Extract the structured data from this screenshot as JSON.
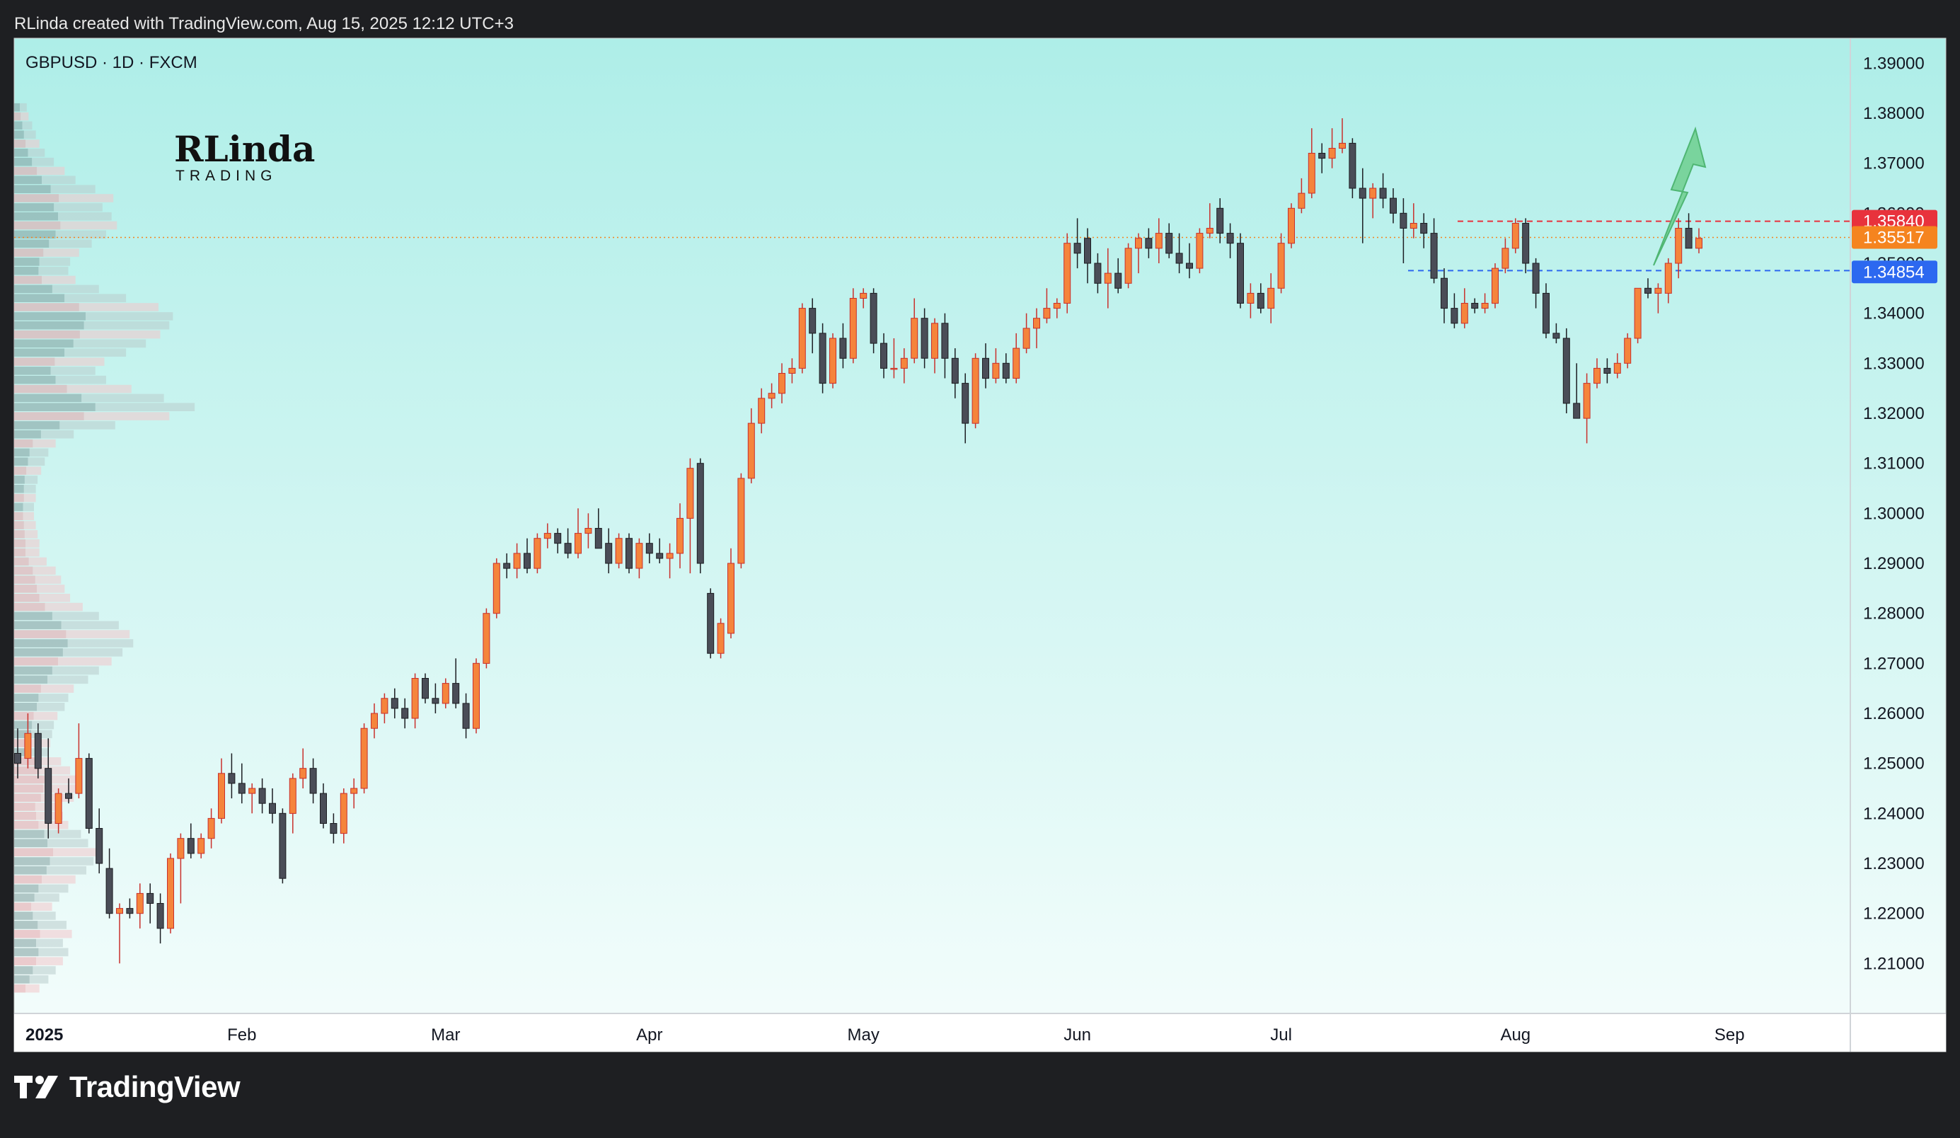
{
  "header": {
    "text": "RLinda created with TradingView.com, Aug 15, 2025 12:12 UTC+3"
  },
  "symbol": {
    "label": "GBPUSD · 1D · FXCM"
  },
  "watermark": {
    "logo_text": "RLinda",
    "logo_sub": "TRADING"
  },
  "footer": {
    "brand": "TradingView"
  },
  "colors": {
    "up": "#f5843c",
    "up_border": "#c9302c",
    "down": "#4a4d57",
    "down_border": "#1c1d22",
    "bg_top": "#aeeee8",
    "bg_bottom": "#f4fdfc",
    "resistance": "#e8323c",
    "current": "#f5841f",
    "support": "#2c68f0",
    "arrow": "#6fcf8f"
  },
  "chart_data": {
    "type": "candlestick",
    "symbol": "GBPUSD",
    "timeframe": "1D",
    "source": "FXCM",
    "ylim": [
      1.2,
      1.395
    ],
    "y_ticks": [
      "1.21000",
      "1.22000",
      "1.23000",
      "1.24000",
      "1.25000",
      "1.26000",
      "1.27000",
      "1.28000",
      "1.29000",
      "1.30000",
      "1.31000",
      "1.32000",
      "1.33000",
      "1.34000",
      "1.35000",
      "1.36000",
      "1.37000",
      "1.38000",
      "1.39000"
    ],
    "x_labels": [
      {
        "label": "2025",
        "index": 0,
        "bold": true
      },
      {
        "label": "Feb",
        "index": 22
      },
      {
        "label": "Mar",
        "index": 42
      },
      {
        "label": "Apr",
        "index": 62
      },
      {
        "label": "May",
        "index": 83
      },
      {
        "label": "Jun",
        "index": 104
      },
      {
        "label": "Jul",
        "index": 124
      },
      {
        "label": "Aug",
        "index": 147
      },
      {
        "label": "Sep",
        "index": 168
      }
    ],
    "levels": [
      {
        "name": "resistance",
        "value": 1.3584,
        "label": "1.35840"
      },
      {
        "name": "current",
        "value": 1.35517,
        "label": "1.35517"
      },
      {
        "name": "support",
        "value": 1.34854,
        "label": "1.34854"
      }
    ],
    "candles": [
      {
        "o": 1.252,
        "h": 1.257,
        "l": 1.247,
        "c": 1.25
      },
      {
        "o": 1.251,
        "h": 1.26,
        "l": 1.249,
        "c": 1.256
      },
      {
        "o": 1.256,
        "h": 1.258,
        "l": 1.247,
        "c": 1.249
      },
      {
        "o": 1.249,
        "h": 1.255,
        "l": 1.235,
        "c": 1.238
      },
      {
        "o": 1.238,
        "h": 1.245,
        "l": 1.236,
        "c": 1.244
      },
      {
        "o": 1.244,
        "h": 1.247,
        "l": 1.242,
        "c": 1.243
      },
      {
        "o": 1.244,
        "h": 1.258,
        "l": 1.243,
        "c": 1.251
      },
      {
        "o": 1.251,
        "h": 1.252,
        "l": 1.236,
        "c": 1.237
      },
      {
        "o": 1.237,
        "h": 1.241,
        "l": 1.228,
        "c": 1.23
      },
      {
        "o": 1.229,
        "h": 1.233,
        "l": 1.219,
        "c": 1.22
      },
      {
        "o": 1.22,
        "h": 1.222,
        "l": 1.21,
        "c": 1.221
      },
      {
        "o": 1.221,
        "h": 1.223,
        "l": 1.219,
        "c": 1.22
      },
      {
        "o": 1.22,
        "h": 1.226,
        "l": 1.217,
        "c": 1.224
      },
      {
        "o": 1.224,
        "h": 1.226,
        "l": 1.218,
        "c": 1.222
      },
      {
        "o": 1.222,
        "h": 1.224,
        "l": 1.214,
        "c": 1.217
      },
      {
        "o": 1.217,
        "h": 1.232,
        "l": 1.216,
        "c": 1.231
      },
      {
        "o": 1.231,
        "h": 1.236,
        "l": 1.222,
        "c": 1.235
      },
      {
        "o": 1.235,
        "h": 1.238,
        "l": 1.231,
        "c": 1.232
      },
      {
        "o": 1.232,
        "h": 1.236,
        "l": 1.231,
        "c": 1.235
      },
      {
        "o": 1.235,
        "h": 1.241,
        "l": 1.233,
        "c": 1.239
      },
      {
        "o": 1.239,
        "h": 1.251,
        "l": 1.238,
        "c": 1.248
      },
      {
        "o": 1.248,
        "h": 1.252,
        "l": 1.243,
        "c": 1.246
      },
      {
        "o": 1.246,
        "h": 1.25,
        "l": 1.242,
        "c": 1.244
      },
      {
        "o": 1.244,
        "h": 1.246,
        "l": 1.24,
        "c": 1.245
      },
      {
        "o": 1.245,
        "h": 1.247,
        "l": 1.24,
        "c": 1.242
      },
      {
        "o": 1.242,
        "h": 1.245,
        "l": 1.238,
        "c": 1.24
      },
      {
        "o": 1.24,
        "h": 1.241,
        "l": 1.226,
        "c": 1.227
      },
      {
        "o": 1.24,
        "h": 1.248,
        "l": 1.236,
        "c": 1.247
      },
      {
        "o": 1.247,
        "h": 1.253,
        "l": 1.245,
        "c": 1.249
      },
      {
        "o": 1.249,
        "h": 1.251,
        "l": 1.242,
        "c": 1.244
      },
      {
        "o": 1.244,
        "h": 1.246,
        "l": 1.237,
        "c": 1.238
      },
      {
        "o": 1.238,
        "h": 1.24,
        "l": 1.234,
        "c": 1.236
      },
      {
        "o": 1.236,
        "h": 1.245,
        "l": 1.234,
        "c": 1.244
      },
      {
        "o": 1.244,
        "h": 1.247,
        "l": 1.241,
        "c": 1.245
      },
      {
        "o": 1.245,
        "h": 1.258,
        "l": 1.244,
        "c": 1.257
      },
      {
        "o": 1.257,
        "h": 1.262,
        "l": 1.255,
        "c": 1.26
      },
      {
        "o": 1.26,
        "h": 1.264,
        "l": 1.258,
        "c": 1.263
      },
      {
        "o": 1.263,
        "h": 1.265,
        "l": 1.259,
        "c": 1.261
      },
      {
        "o": 1.261,
        "h": 1.263,
        "l": 1.257,
        "c": 1.259
      },
      {
        "o": 1.259,
        "h": 1.268,
        "l": 1.257,
        "c": 1.267
      },
      {
        "o": 1.267,
        "h": 1.268,
        "l": 1.262,
        "c": 1.263
      },
      {
        "o": 1.263,
        "h": 1.266,
        "l": 1.26,
        "c": 1.262
      },
      {
        "o": 1.262,
        "h": 1.267,
        "l": 1.261,
        "c": 1.266
      },
      {
        "o": 1.266,
        "h": 1.271,
        "l": 1.261,
        "c": 1.262
      },
      {
        "o": 1.262,
        "h": 1.264,
        "l": 1.255,
        "c": 1.257
      },
      {
        "o": 1.257,
        "h": 1.271,
        "l": 1.256,
        "c": 1.27
      },
      {
        "o": 1.27,
        "h": 1.281,
        "l": 1.269,
        "c": 1.28
      },
      {
        "o": 1.28,
        "h": 1.291,
        "l": 1.279,
        "c": 1.29
      },
      {
        "o": 1.29,
        "h": 1.292,
        "l": 1.287,
        "c": 1.289
      },
      {
        "o": 1.289,
        "h": 1.294,
        "l": 1.287,
        "c": 1.292
      },
      {
        "o": 1.292,
        "h": 1.295,
        "l": 1.288,
        "c": 1.289
      },
      {
        "o": 1.289,
        "h": 1.296,
        "l": 1.288,
        "c": 1.295
      },
      {
        "o": 1.295,
        "h": 1.298,
        "l": 1.293,
        "c": 1.296
      },
      {
        "o": 1.296,
        "h": 1.297,
        "l": 1.292,
        "c": 1.294
      },
      {
        "o": 1.294,
        "h": 1.297,
        "l": 1.291,
        "c": 1.292
      },
      {
        "o": 1.292,
        "h": 1.301,
        "l": 1.291,
        "c": 1.296
      },
      {
        "o": 1.296,
        "h": 1.3,
        "l": 1.293,
        "c": 1.297
      },
      {
        "o": 1.297,
        "h": 1.301,
        "l": 1.293,
        "c": 1.293
      },
      {
        "o": 1.294,
        "h": 1.297,
        "l": 1.288,
        "c": 1.29
      },
      {
        "o": 1.29,
        "h": 1.296,
        "l": 1.289,
        "c": 1.295
      },
      {
        "o": 1.295,
        "h": 1.296,
        "l": 1.288,
        "c": 1.289
      },
      {
        "o": 1.289,
        "h": 1.295,
        "l": 1.287,
        "c": 1.294
      },
      {
        "o": 1.294,
        "h": 1.296,
        "l": 1.29,
        "c": 1.292
      },
      {
        "o": 1.292,
        "h": 1.295,
        "l": 1.29,
        "c": 1.291
      },
      {
        "o": 1.291,
        "h": 1.294,
        "l": 1.287,
        "c": 1.292
      },
      {
        "o": 1.292,
        "h": 1.302,
        "l": 1.289,
        "c": 1.299
      },
      {
        "o": 1.299,
        "h": 1.311,
        "l": 1.288,
        "c": 1.309
      },
      {
        "o": 1.31,
        "h": 1.311,
        "l": 1.288,
        "c": 1.29
      },
      {
        "o": 1.284,
        "h": 1.285,
        "l": 1.271,
        "c": 1.272
      },
      {
        "o": 1.272,
        "h": 1.279,
        "l": 1.271,
        "c": 1.278
      },
      {
        "o": 1.276,
        "h": 1.293,
        "l": 1.275,
        "c": 1.29
      },
      {
        "o": 1.29,
        "h": 1.308,
        "l": 1.289,
        "c": 1.307
      },
      {
        "o": 1.307,
        "h": 1.321,
        "l": 1.306,
        "c": 1.318
      },
      {
        "o": 1.318,
        "h": 1.325,
        "l": 1.316,
        "c": 1.323
      },
      {
        "o": 1.323,
        "h": 1.326,
        "l": 1.321,
        "c": 1.324
      },
      {
        "o": 1.324,
        "h": 1.33,
        "l": 1.322,
        "c": 1.328
      },
      {
        "o": 1.328,
        "h": 1.331,
        "l": 1.326,
        "c": 1.329
      },
      {
        "o": 1.329,
        "h": 1.342,
        "l": 1.328,
        "c": 1.341
      },
      {
        "o": 1.341,
        "h": 1.343,
        "l": 1.332,
        "c": 1.336
      },
      {
        "o": 1.336,
        "h": 1.338,
        "l": 1.324,
        "c": 1.326
      },
      {
        "o": 1.326,
        "h": 1.336,
        "l": 1.325,
        "c": 1.335
      },
      {
        "o": 1.335,
        "h": 1.338,
        "l": 1.329,
        "c": 1.331
      },
      {
        "o": 1.331,
        "h": 1.345,
        "l": 1.33,
        "c": 1.343
      },
      {
        "o": 1.343,
        "h": 1.345,
        "l": 1.341,
        "c": 1.344
      },
      {
        "o": 1.344,
        "h": 1.345,
        "l": 1.332,
        "c": 1.334
      },
      {
        "o": 1.334,
        "h": 1.336,
        "l": 1.327,
        "c": 1.329
      },
      {
        "o": 1.329,
        "h": 1.335,
        "l": 1.327,
        "c": 1.329
      },
      {
        "o": 1.329,
        "h": 1.333,
        "l": 1.326,
        "c": 1.331
      },
      {
        "o": 1.331,
        "h": 1.343,
        "l": 1.33,
        "c": 1.339
      },
      {
        "o": 1.339,
        "h": 1.341,
        "l": 1.329,
        "c": 1.331
      },
      {
        "o": 1.331,
        "h": 1.339,
        "l": 1.328,
        "c": 1.338
      },
      {
        "o": 1.338,
        "h": 1.34,
        "l": 1.327,
        "c": 1.331
      },
      {
        "o": 1.331,
        "h": 1.333,
        "l": 1.323,
        "c": 1.326
      },
      {
        "o": 1.326,
        "h": 1.328,
        "l": 1.314,
        "c": 1.318
      },
      {
        "o": 1.318,
        "h": 1.332,
        "l": 1.317,
        "c": 1.331
      },
      {
        "o": 1.331,
        "h": 1.334,
        "l": 1.325,
        "c": 1.327
      },
      {
        "o": 1.327,
        "h": 1.333,
        "l": 1.326,
        "c": 1.33
      },
      {
        "o": 1.33,
        "h": 1.332,
        "l": 1.326,
        "c": 1.327
      },
      {
        "o": 1.327,
        "h": 1.336,
        "l": 1.326,
        "c": 1.333
      },
      {
        "o": 1.333,
        "h": 1.34,
        "l": 1.332,
        "c": 1.337
      },
      {
        "o": 1.337,
        "h": 1.341,
        "l": 1.333,
        "c": 1.339
      },
      {
        "o": 1.339,
        "h": 1.345,
        "l": 1.338,
        "c": 1.341
      },
      {
        "o": 1.341,
        "h": 1.343,
        "l": 1.339,
        "c": 1.342
      },
      {
        "o": 1.342,
        "h": 1.356,
        "l": 1.34,
        "c": 1.354
      },
      {
        "o": 1.354,
        "h": 1.359,
        "l": 1.349,
        "c": 1.352
      },
      {
        "o": 1.355,
        "h": 1.357,
        "l": 1.346,
        "c": 1.35
      },
      {
        "o": 1.35,
        "h": 1.352,
        "l": 1.344,
        "c": 1.346
      },
      {
        "o": 1.346,
        "h": 1.353,
        "l": 1.341,
        "c": 1.348
      },
      {
        "o": 1.348,
        "h": 1.351,
        "l": 1.344,
        "c": 1.345
      },
      {
        "o": 1.346,
        "h": 1.354,
        "l": 1.345,
        "c": 1.353
      },
      {
        "o": 1.353,
        "h": 1.356,
        "l": 1.348,
        "c": 1.355
      },
      {
        "o": 1.355,
        "h": 1.357,
        "l": 1.351,
        "c": 1.353
      },
      {
        "o": 1.353,
        "h": 1.359,
        "l": 1.35,
        "c": 1.356
      },
      {
        "o": 1.356,
        "h": 1.358,
        "l": 1.351,
        "c": 1.352
      },
      {
        "o": 1.352,
        "h": 1.356,
        "l": 1.348,
        "c": 1.35
      },
      {
        "o": 1.35,
        "h": 1.354,
        "l": 1.347,
        "c": 1.349
      },
      {
        "o": 1.349,
        "h": 1.357,
        "l": 1.348,
        "c": 1.356
      },
      {
        "o": 1.356,
        "h": 1.362,
        "l": 1.355,
        "c": 1.357
      },
      {
        "o": 1.361,
        "h": 1.363,
        "l": 1.354,
        "c": 1.356
      },
      {
        "o": 1.356,
        "h": 1.358,
        "l": 1.351,
        "c": 1.354
      },
      {
        "o": 1.354,
        "h": 1.356,
        "l": 1.341,
        "c": 1.342
      },
      {
        "o": 1.342,
        "h": 1.346,
        "l": 1.339,
        "c": 1.344
      },
      {
        "o": 1.344,
        "h": 1.346,
        "l": 1.34,
        "c": 1.341
      },
      {
        "o": 1.341,
        "h": 1.348,
        "l": 1.338,
        "c": 1.345
      },
      {
        "o": 1.345,
        "h": 1.356,
        "l": 1.344,
        "c": 1.354
      },
      {
        "o": 1.354,
        "h": 1.362,
        "l": 1.353,
        "c": 1.361
      },
      {
        "o": 1.361,
        "h": 1.367,
        "l": 1.36,
        "c": 1.364
      },
      {
        "o": 1.364,
        "h": 1.377,
        "l": 1.363,
        "c": 1.372
      },
      {
        "o": 1.372,
        "h": 1.374,
        "l": 1.368,
        "c": 1.371
      },
      {
        "o": 1.371,
        "h": 1.377,
        "l": 1.369,
        "c": 1.373
      },
      {
        "o": 1.373,
        "h": 1.379,
        "l": 1.372,
        "c": 1.374
      },
      {
        "o": 1.374,
        "h": 1.375,
        "l": 1.363,
        "c": 1.365
      },
      {
        "o": 1.365,
        "h": 1.369,
        "l": 1.354,
        "c": 1.363
      },
      {
        "o": 1.363,
        "h": 1.366,
        "l": 1.359,
        "c": 1.365
      },
      {
        "o": 1.365,
        "h": 1.368,
        "l": 1.361,
        "c": 1.363
      },
      {
        "o": 1.363,
        "h": 1.365,
        "l": 1.358,
        "c": 1.36
      },
      {
        "o": 1.36,
        "h": 1.363,
        "l": 1.35,
        "c": 1.357
      },
      {
        "o": 1.357,
        "h": 1.362,
        "l": 1.355,
        "c": 1.358
      },
      {
        "o": 1.358,
        "h": 1.36,
        "l": 1.353,
        "c": 1.356
      },
      {
        "o": 1.356,
        "h": 1.359,
        "l": 1.346,
        "c": 1.347
      },
      {
        "o": 1.347,
        "h": 1.349,
        "l": 1.338,
        "c": 1.341
      },
      {
        "o": 1.341,
        "h": 1.344,
        "l": 1.337,
        "c": 1.338
      },
      {
        "o": 1.338,
        "h": 1.345,
        "l": 1.337,
        "c": 1.342
      },
      {
        "o": 1.342,
        "h": 1.343,
        "l": 1.34,
        "c": 1.341
      },
      {
        "o": 1.341,
        "h": 1.344,
        "l": 1.34,
        "c": 1.342
      },
      {
        "o": 1.342,
        "h": 1.35,
        "l": 1.341,
        "c": 1.349
      },
      {
        "o": 1.349,
        "h": 1.355,
        "l": 1.348,
        "c": 1.353
      },
      {
        "o": 1.353,
        "h": 1.359,
        "l": 1.352,
        "c": 1.358
      },
      {
        "o": 1.358,
        "h": 1.359,
        "l": 1.348,
        "c": 1.35
      },
      {
        "o": 1.35,
        "h": 1.351,
        "l": 1.341,
        "c": 1.344
      },
      {
        "o": 1.344,
        "h": 1.346,
        "l": 1.335,
        "c": 1.336
      },
      {
        "o": 1.336,
        "h": 1.338,
        "l": 1.334,
        "c": 1.335
      },
      {
        "o": 1.335,
        "h": 1.337,
        "l": 1.32,
        "c": 1.322
      },
      {
        "o": 1.322,
        "h": 1.33,
        "l": 1.319,
        "c": 1.319
      },
      {
        "o": 1.319,
        "h": 1.328,
        "l": 1.314,
        "c": 1.326
      },
      {
        "o": 1.326,
        "h": 1.331,
        "l": 1.325,
        "c": 1.329
      },
      {
        "o": 1.329,
        "h": 1.331,
        "l": 1.326,
        "c": 1.328
      },
      {
        "o": 1.328,
        "h": 1.332,
        "l": 1.327,
        "c": 1.33
      },
      {
        "o": 1.33,
        "h": 1.336,
        "l": 1.329,
        "c": 1.335
      },
      {
        "o": 1.335,
        "h": 1.345,
        "l": 1.334,
        "c": 1.345
      },
      {
        "o": 1.345,
        "h": 1.347,
        "l": 1.343,
        "c": 1.344
      },
      {
        "o": 1.344,
        "h": 1.346,
        "l": 1.34,
        "c": 1.345
      },
      {
        "o": 1.344,
        "h": 1.351,
        "l": 1.342,
        "c": 1.35
      },
      {
        "o": 1.35,
        "h": 1.359,
        "l": 1.347,
        "c": 1.357
      },
      {
        "o": 1.357,
        "h": 1.36,
        "l": 1.353,
        "c": 1.353
      },
      {
        "o": 1.353,
        "h": 1.357,
        "l": 1.352,
        "c": 1.355
      }
    ],
    "volume_profile": {
      "price_min": 1.204,
      "price_max": 1.382,
      "widths": [
        0.14,
        0.19,
        0.23,
        0.27,
        0.3,
        0.27,
        0.32,
        0.29,
        0.23,
        0.21,
        0.25,
        0.3,
        0.34,
        0.4,
        0.44,
        0.48,
        0.41,
        0.37,
        0.3,
        0.27,
        0.26,
        0.33,
        0.36,
        0.37,
        0.31,
        0.26,
        0.19,
        0.2,
        0.21,
        0.22,
        0.24,
        0.28,
        0.3,
        0.33,
        0.41,
        0.47,
        0.54,
        0.6,
        0.66,
        0.64,
        0.58,
        0.47,
        0.38,
        0.31,
        0.28,
        0.26,
        0.23,
        0.18,
        0.14,
        0.14,
        0.13,
        0.12,
        0.11,
        0.11,
        0.12,
        0.12,
        0.13,
        0.15,
        0.17,
        0.19,
        0.23,
        0.33,
        0.56,
        0.86,
        1.0,
        0.83,
        0.65,
        0.51,
        0.45,
        0.5,
        0.62,
        0.73,
        0.81,
        0.86,
        0.88,
        0.8,
        0.62,
        0.47,
        0.34,
        0.3,
        0.31,
        0.36,
        0.43,
        0.51,
        0.57,
        0.54,
        0.49,
        0.55,
        0.45,
        0.34,
        0.28,
        0.22,
        0.17,
        0.14,
        0.12,
        0.1,
        0.08,
        0.07
      ]
    },
    "annotation": {
      "type": "arrow",
      "direction": "up"
    }
  }
}
